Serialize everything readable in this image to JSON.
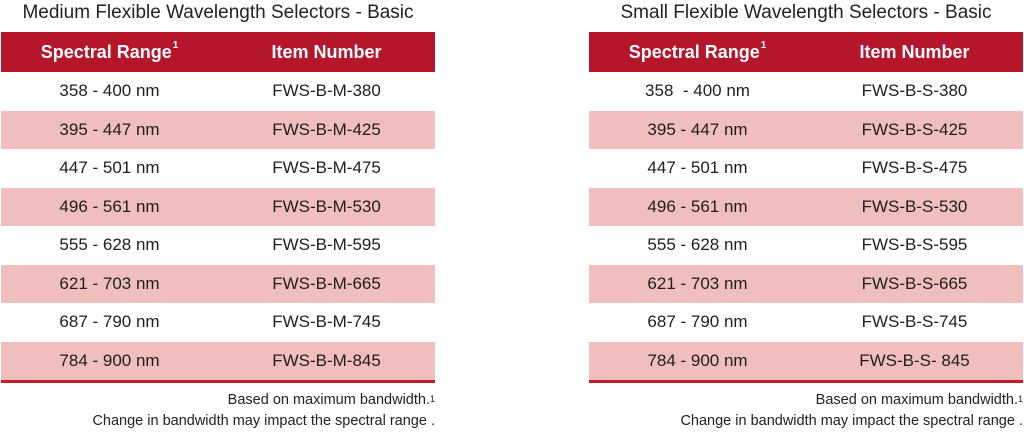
{
  "tables": [
    {
      "title": "Medium Flexible Wavelength Selectors - Basic",
      "headers": {
        "col1": "Spectral Range",
        "col1_sup": "1",
        "col2": "Item Number"
      },
      "rows": [
        {
          "range": "358 - 400 nm",
          "item": "FWS-B-M-380"
        },
        {
          "range": "395 - 447 nm",
          "item": "FWS-B-M-425"
        },
        {
          "range": "447 - 501 nm",
          "item": "FWS-B-M-475"
        },
        {
          "range": "496 - 561 nm",
          "item": "FWS-B-M-530"
        },
        {
          "range": "555 - 628 nm",
          "item": "FWS-B-M-595"
        },
        {
          "range": "621 - 703 nm",
          "item": "FWS-B-M-665"
        },
        {
          "range": "687 - 790 nm",
          "item": "FWS-B-M-745"
        },
        {
          "range": "784 - 900 nm",
          "item": "FWS-B-M-845"
        }
      ],
      "footnote": {
        "line1": "Based on maximum bandwidth.",
        "line1_sup": "1",
        "line2": "Change in bandwidth may impact the spectral range ."
      }
    },
    {
      "title": "Small Flexible Wavelength Selectors - Basic",
      "headers": {
        "col1": "Spectral Range",
        "col1_sup": "1",
        "col2": "Item Number"
      },
      "rows": [
        {
          "range": "358  - 400 nm",
          "item": "FWS-B-S-380"
        },
        {
          "range": "395 - 447 nm",
          "item": "FWS-B-S-425"
        },
        {
          "range": "447 - 501 nm",
          "item": "FWS-B-S-475"
        },
        {
          "range": "496 - 561 nm",
          "item": "FWS-B-S-530"
        },
        {
          "range": "555 - 628 nm",
          "item": "FWS-B-S-595"
        },
        {
          "range": "621 - 703 nm",
          "item": "FWS-B-S-665"
        },
        {
          "range": "687 - 790 nm",
          "item": "FWS-B-S-745"
        },
        {
          "range": "784 - 900 nm",
          "item": "FWS-B-S- 845"
        }
      ],
      "footnote": {
        "line1": "Based on maximum bandwidth.",
        "line1_sup": "1",
        "line2": "Change in bandwidth may impact the spectral range ."
      }
    }
  ],
  "colors": {
    "header_bg": "#b5162a",
    "row_shade": "#f0bebd",
    "rule": "#c01d2e"
  }
}
